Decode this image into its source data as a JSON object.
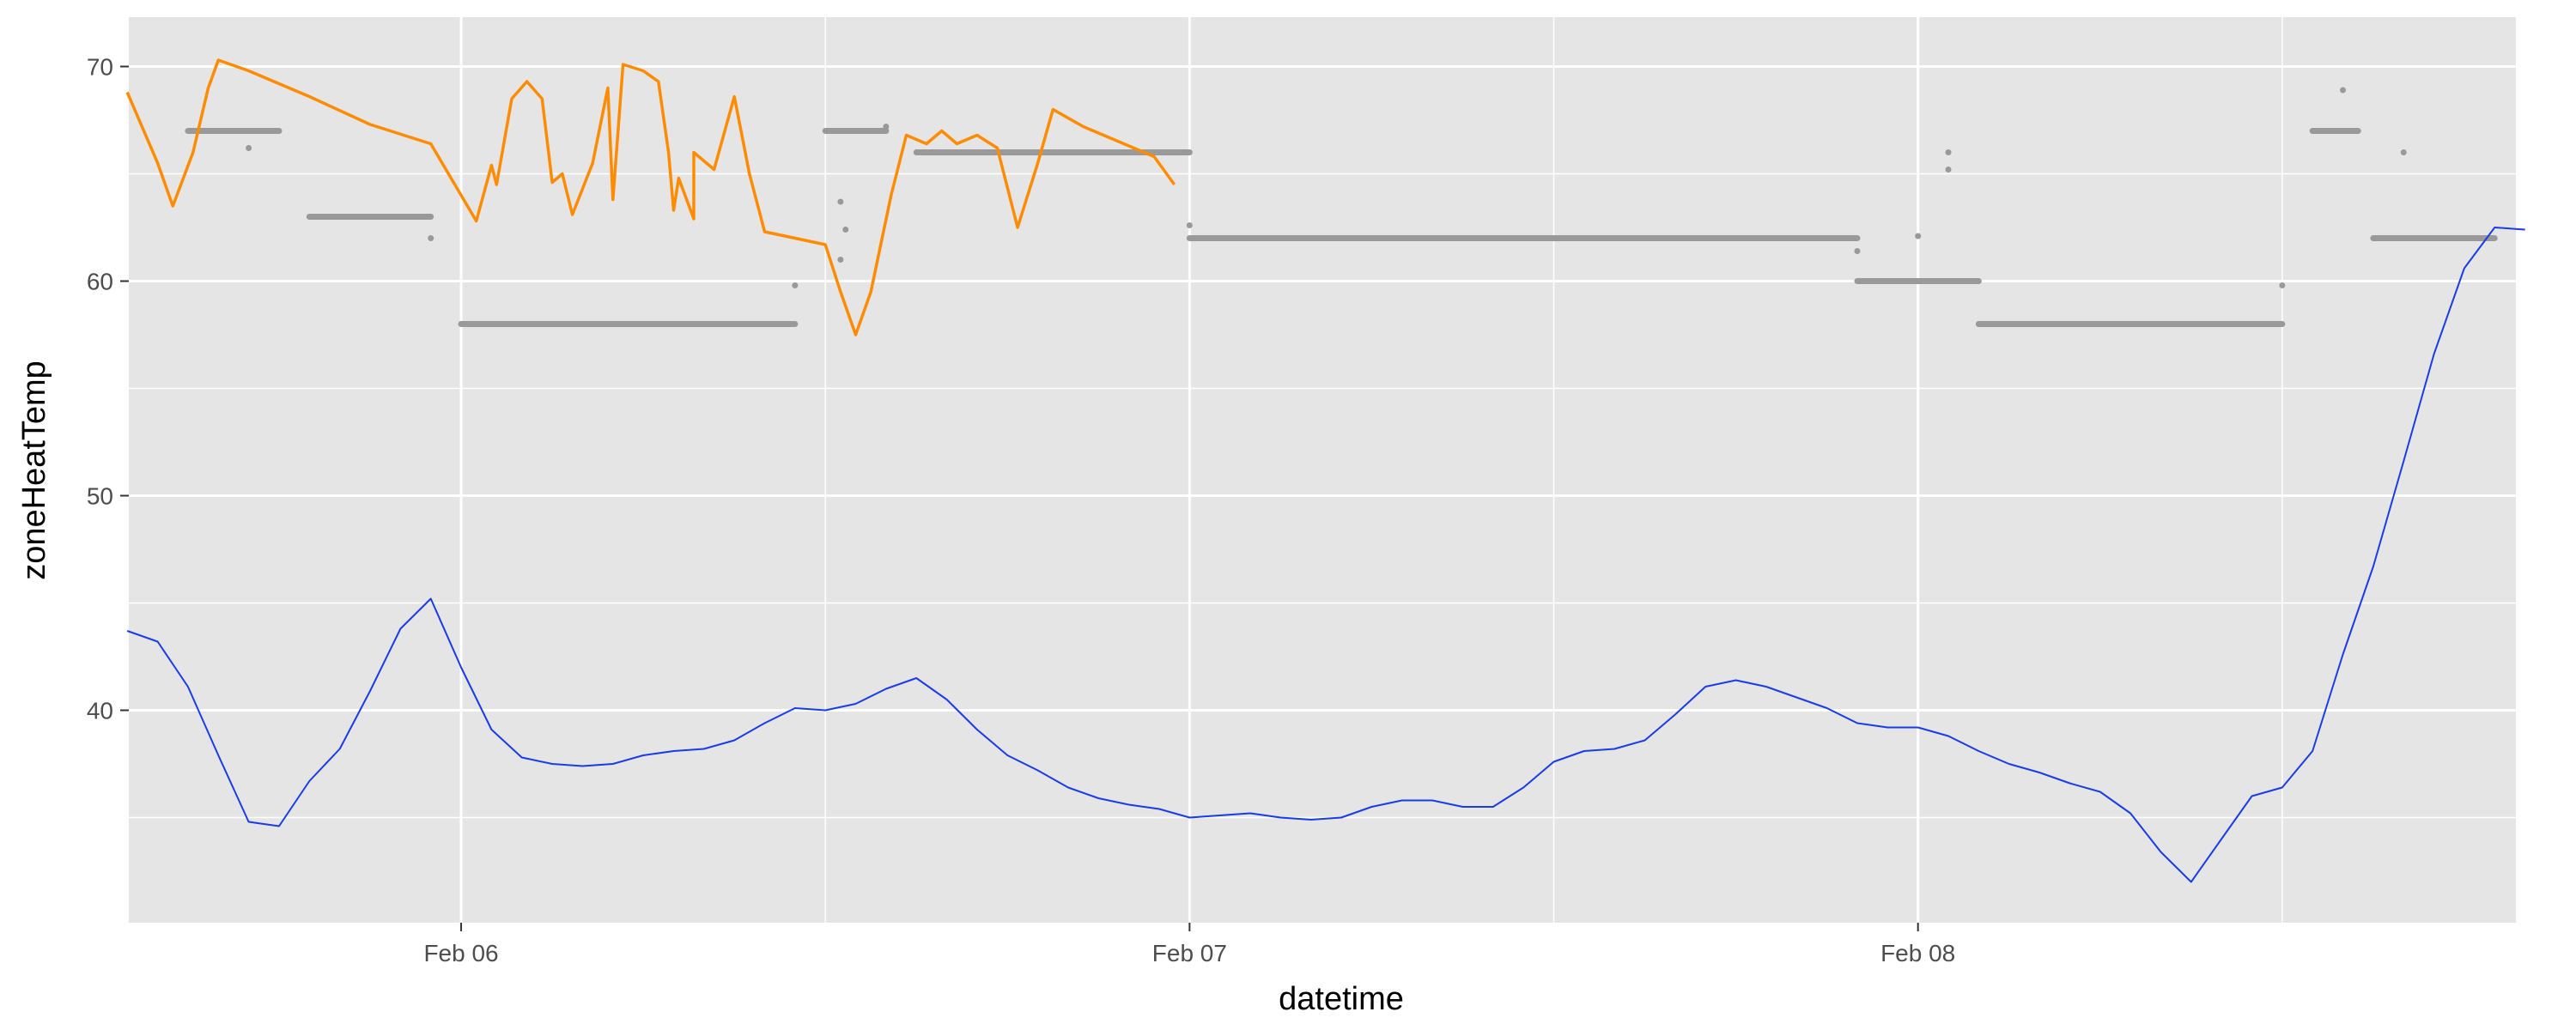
{
  "chart_data": {
    "type": "line",
    "xlabel": "datetime",
    "ylabel": "zoneHeatTemp",
    "x_ticks": [
      {
        "value": "2016-02-06T00:00",
        "label": "Feb 06"
      },
      {
        "value": "2016-02-07T00:00",
        "label": "Feb 07"
      },
      {
        "value": "2016-02-08T00:00",
        "label": "Feb 08"
      }
    ],
    "x_range": [
      "2016-02-05T13:03",
      "2016-02-08T19:42"
    ],
    "y_ticks": [
      40,
      50,
      60,
      70
    ],
    "y_range": [
      30.1,
      72.3
    ],
    "grid": true,
    "colors": {
      "panel": "#e5e5e5",
      "grid": "#ffffff",
      "zone_temp": "#ff8c00",
      "heating": "#ff0000",
      "setpoint": "#999999",
      "outdoor": "#1a3ce6"
    },
    "series": [
      {
        "key": "setpoint",
        "style": "points",
        "segments": [
          {
            "start": "2016-02-05T15:00",
            "end": "2016-02-05T18:00",
            "y": 67
          },
          {
            "start": "2016-02-05T19:00",
            "end": "2016-02-05T23:00",
            "y": 63
          },
          {
            "start": "2016-02-06T00:00",
            "end": "2016-02-06T11:00",
            "y": 58
          },
          {
            "start": "2016-02-06T12:00",
            "end": "2016-02-06T14:00",
            "y": 67
          },
          {
            "start": "2016-02-06T15:00",
            "end": "2016-02-07T00:00",
            "y": 66
          },
          {
            "start": "2016-02-07T00:00",
            "end": "2016-02-07T22:00",
            "y": 62
          },
          {
            "start": "2016-02-07T22:00",
            "end": "2016-02-08T02:00",
            "y": 60
          },
          {
            "start": "2016-02-08T02:00",
            "end": "2016-02-08T12:00",
            "y": 58
          },
          {
            "start": "2016-02-08T13:00",
            "end": "2016-02-08T14:30",
            "y": 67
          },
          {
            "start": "2016-02-08T15:00",
            "end": "2016-02-08T19:00",
            "y": 62
          }
        ],
        "points": [
          {
            "x": "2016-02-05T17:00",
            "y": 66.2
          },
          {
            "x": "2016-02-05T23:00",
            "y": 62.0
          },
          {
            "x": "2016-02-06T11:00",
            "y": 59.8
          },
          {
            "x": "2016-02-06T12:30",
            "y": 63.7
          },
          {
            "x": "2016-02-06T12:40",
            "y": 62.4
          },
          {
            "x": "2016-02-06T12:30",
            "y": 61.0
          },
          {
            "x": "2016-02-06T14:00",
            "y": 67.2
          },
          {
            "x": "2016-02-07T00:00",
            "y": 62.6
          },
          {
            "x": "2016-02-08T01:00",
            "y": 65.2
          },
          {
            "x": "2016-02-08T01:00",
            "y": 66.0
          },
          {
            "x": "2016-02-08T00:00",
            "y": 62.1
          },
          {
            "x": "2016-02-08T12:00",
            "y": 59.8
          },
          {
            "x": "2016-02-08T14:00",
            "y": 68.9
          },
          {
            "x": "2016-02-08T16:00",
            "y": 66.0
          },
          {
            "x": "2016-02-07T22:00",
            "y": 61.4
          }
        ]
      },
      {
        "key": "zone_temp",
        "style": "line",
        "points": [
          [
            "2016-02-05T13:00",
            68.8
          ],
          [
            "2016-02-05T14:00",
            65.5
          ],
          [
            "2016-02-05T14:30",
            63.5
          ],
          [
            "2016-02-05T15:10",
            66.0
          ],
          [
            "2016-02-05T15:40",
            69.0
          ],
          [
            "2016-02-05T16:00",
            70.3
          ],
          [
            "2016-02-05T17:00",
            69.8
          ],
          [
            "2016-02-05T19:00",
            68.6
          ],
          [
            "2016-02-05T21:00",
            67.3
          ],
          [
            "2016-02-05T23:00",
            66.4
          ],
          [
            "2016-02-06T01:00",
            65.4
          ],
          [
            "2016-02-06T03:00",
            64.6
          ],
          [
            "2016-02-06T05:00",
            63.8
          ],
          [
            "2016-02-06T07:00",
            63.3
          ],
          [
            "2016-02-06T07:40",
            62.9
          ],
          [
            "2016-02-06T08:20",
            65.2
          ],
          [
            "2016-02-06T09:00",
            68.6
          ],
          [
            "2016-02-06T09:30",
            65.0
          ],
          [
            "2016-02-06T10:00",
            62.3
          ],
          [
            "2016-02-06T11:00",
            62.0
          ],
          [
            "2016-02-06T12:00",
            61.7
          ],
          [
            "2016-02-06T12:30",
            59.5
          ],
          [
            "2016-02-06T13:00",
            57.5
          ],
          [
            "2016-02-06T13:30",
            59.5
          ],
          [
            "2016-02-06T14:10",
            64.0
          ],
          [
            "2016-02-06T14:40",
            66.8
          ],
          [
            "2016-02-06T15:20",
            66.4
          ],
          [
            "2016-02-06T15:50",
            67.0
          ],
          [
            "2016-02-06T16:20",
            66.4
          ],
          [
            "2016-02-06T17:00",
            66.8
          ],
          [
            "2016-02-06T17:40",
            66.2
          ],
          [
            "2016-02-06T18:20",
            62.5
          ],
          [
            "2016-02-06T19:00",
            65.5
          ],
          [
            "2016-02-06T19:30",
            68.0
          ],
          [
            "2016-02-06T20:30",
            67.2
          ],
          [
            "2016-02-06T21:40",
            66.5
          ],
          [
            "2016-02-06T22:50",
            65.8
          ],
          [
            "2016-02-06T23:30",
            64.5
          ],
          [
            "2016-02-06T00:30",
            62.8
          ],
          [
            "2016-02-06T01:10",
            64.5
          ],
          [
            "2016-02-06T01:40",
            68.5
          ],
          [
            "2016-02-06T02:10",
            69.3
          ],
          [
            "2016-02-06T02:40",
            68.5
          ],
          [
            "2016-02-06T03:20",
            65.0
          ],
          [
            "2016-02-06T03:40",
            63.1
          ],
          [
            "2016-02-06T04:20",
            65.5
          ],
          [
            "2016-02-06T04:50",
            69.0
          ],
          [
            "2016-02-06T05:20",
            70.1
          ],
          [
            "2016-02-06T06:00",
            69.8
          ],
          [
            "2016-02-06T06:30",
            69.3
          ],
          [
            "2016-02-06T06:50",
            66.0
          ],
          [
            "2016-02-06T07:10",
            64.8
          ],
          [
            "2016-02-06T07:40",
            66.0
          ]
        ]
      },
      {
        "key": "outdoor_temp",
        "style": "line",
        "points": [
          [
            "2016-02-05T13:00",
            43.7
          ],
          [
            "2016-02-05T14:00",
            43.2
          ],
          [
            "2016-02-05T15:00",
            41.1
          ],
          [
            "2016-02-05T16:00",
            37.9
          ],
          [
            "2016-02-05T17:00",
            34.8
          ],
          [
            "2016-02-05T18:00",
            34.6
          ],
          [
            "2016-02-05T19:00",
            36.7
          ],
          [
            "2016-02-05T20:00",
            38.2
          ],
          [
            "2016-02-05T21:00",
            40.9
          ],
          [
            "2016-02-05T22:00",
            43.8
          ],
          [
            "2016-02-05T23:00",
            45.2
          ],
          [
            "2016-02-06T00:00",
            42.0
          ],
          [
            "2016-02-06T01:00",
            39.1
          ],
          [
            "2016-02-06T02:00",
            37.8
          ],
          [
            "2016-02-06T03:00",
            37.5
          ],
          [
            "2016-02-06T04:00",
            37.4
          ],
          [
            "2016-02-06T05:00",
            37.5
          ],
          [
            "2016-02-06T06:00",
            37.9
          ],
          [
            "2016-02-06T07:00",
            38.1
          ],
          [
            "2016-02-06T08:00",
            38.2
          ],
          [
            "2016-02-06T09:00",
            38.6
          ],
          [
            "2016-02-06T10:00",
            39.4
          ],
          [
            "2016-02-06T11:00",
            40.1
          ],
          [
            "2016-02-06T12:00",
            40.0
          ],
          [
            "2016-02-06T13:00",
            40.3
          ],
          [
            "2016-02-06T14:00",
            41.0
          ],
          [
            "2016-02-06T15:00",
            41.5
          ],
          [
            "2016-02-06T16:00",
            40.5
          ],
          [
            "2016-02-06T17:00",
            39.1
          ],
          [
            "2016-02-06T18:00",
            37.9
          ],
          [
            "2016-02-06T19:00",
            37.2
          ],
          [
            "2016-02-06T20:00",
            36.4
          ],
          [
            "2016-02-06T21:00",
            35.9
          ],
          [
            "2016-02-06T22:00",
            35.6
          ],
          [
            "2016-02-06T23:00",
            35.4
          ],
          [
            "2016-02-07T00:00",
            35.0
          ],
          [
            "2016-02-07T01:00",
            35.1
          ],
          [
            "2016-02-07T02:00",
            35.2
          ],
          [
            "2016-02-07T03:00",
            35.0
          ],
          [
            "2016-02-07T04:00",
            34.9
          ],
          [
            "2016-02-07T05:00",
            35.0
          ],
          [
            "2016-02-07T06:00",
            35.5
          ],
          [
            "2016-02-07T07:00",
            35.8
          ],
          [
            "2016-02-07T08:00",
            35.8
          ],
          [
            "2016-02-07T09:00",
            35.5
          ],
          [
            "2016-02-07T10:00",
            35.5
          ],
          [
            "2016-02-07T11:00",
            36.4
          ],
          [
            "2016-02-07T12:00",
            37.6
          ],
          [
            "2016-02-07T13:00",
            38.1
          ],
          [
            "2016-02-07T14:00",
            38.2
          ],
          [
            "2016-02-07T15:00",
            38.6
          ],
          [
            "2016-02-07T16:00",
            39.8
          ],
          [
            "2016-02-07T17:00",
            41.1
          ],
          [
            "2016-02-07T18:00",
            41.4
          ],
          [
            "2016-02-07T19:00",
            41.1
          ],
          [
            "2016-02-07T20:00",
            40.6
          ],
          [
            "2016-02-07T21:00",
            40.1
          ],
          [
            "2016-02-07T22:00",
            39.4
          ],
          [
            "2016-02-07T23:00",
            39.2
          ],
          [
            "2016-02-08T00:00",
            39.2
          ],
          [
            "2016-02-08T01:00",
            38.8
          ],
          [
            "2016-02-08T02:00",
            38.1
          ],
          [
            "2016-02-08T03:00",
            37.5
          ],
          [
            "2016-02-08T04:00",
            37.1
          ],
          [
            "2016-02-08T05:00",
            36.6
          ],
          [
            "2016-02-08T06:00",
            36.2
          ],
          [
            "2016-02-08T07:00",
            35.2
          ],
          [
            "2016-02-08T08:00",
            33.4
          ],
          [
            "2016-02-08T09:00",
            32.0
          ],
          [
            "2016-02-08T10:00",
            34.0
          ],
          [
            "2016-02-08T11:00",
            36.0
          ],
          [
            "2016-02-08T12:00",
            36.4
          ],
          [
            "2016-02-08T13:00",
            38.1
          ],
          [
            "2016-02-08T14:00",
            42.6
          ],
          [
            "2016-02-08T15:00",
            46.7
          ],
          [
            "2016-02-08T16:00",
            51.6
          ],
          [
            "2016-02-08T17:00",
            56.6
          ],
          [
            "2016-02-08T18:00",
            60.6
          ],
          [
            "2016-02-08T19:00",
            62.5
          ],
          [
            "2016-02-08T20:00",
            62.4
          ]
        ]
      }
    ]
  }
}
